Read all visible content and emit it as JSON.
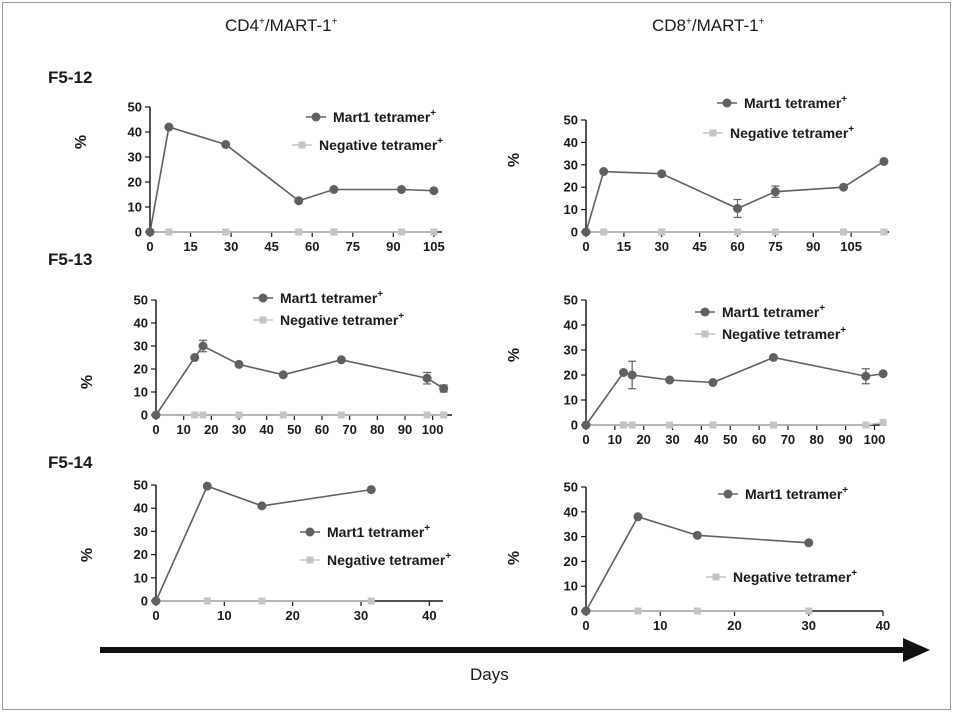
{
  "column_titles": {
    "left": {
      "base": "CD4",
      "sup1": "+",
      "mid": "/MART-1",
      "sup2": "+"
    },
    "right": {
      "base": "CD8",
      "sup1": "+",
      "mid": "/MART-1",
      "sup2": "+"
    }
  },
  "row_labels": [
    "F5-12",
    "F5-13",
    "F5-14"
  ],
  "x_axis_label": "Days",
  "colors": {
    "mart1": "#606060",
    "negative": "#c4c4c4",
    "axis": "#1a1a1a",
    "arrow": "#111111"
  },
  "chart_data": [
    {
      "type": "line",
      "row": "F5-12",
      "column": "CD4+/MART-1+",
      "ylabel": "%",
      "xlim": [
        0,
        108
      ],
      "ylim": [
        0,
        50
      ],
      "xticks": [
        0,
        15,
        30,
        45,
        60,
        75,
        90,
        105
      ],
      "yticks": [
        0,
        10,
        20,
        30,
        40,
        50
      ],
      "series": [
        {
          "name": "Mart1 tetramer+",
          "points": [
            [
              0,
              0
            ],
            [
              7,
              42
            ],
            [
              28,
              35
            ],
            [
              55,
              12.5
            ],
            [
              68,
              17
            ],
            [
              93,
              17
            ],
            [
              105,
              16.5
            ]
          ],
          "errors": [
            0,
            0,
            0,
            0,
            0,
            0,
            0
          ]
        },
        {
          "name": "Negative tetramer+",
          "points": [
            [
              0,
              0
            ],
            [
              7,
              0
            ],
            [
              28,
              0
            ],
            [
              55,
              0
            ],
            [
              68,
              0
            ],
            [
              93,
              0
            ],
            [
              105,
              0
            ]
          ],
          "errors": [
            0,
            0,
            0,
            0,
            0,
            0,
            0
          ]
        }
      ],
      "legend": [
        {
          "series": 0,
          "text": "Mart1 tetramer",
          "sup": "+"
        },
        {
          "series": 1,
          "text": "Negative tetramer",
          "sup": "+"
        }
      ]
    },
    {
      "type": "line",
      "row": "F5-12",
      "column": "CD8+/MART-1+",
      "ylabel": "%",
      "xlim": [
        0,
        120
      ],
      "ylim": [
        0,
        50
      ],
      "xticks": [
        0,
        15,
        30,
        45,
        60,
        75,
        90,
        105
      ],
      "yticks": [
        0,
        10,
        20,
        30,
        40,
        50
      ],
      "series": [
        {
          "name": "Mart1 tetramer+",
          "points": [
            [
              0,
              0
            ],
            [
              7,
              27
            ],
            [
              30,
              26
            ],
            [
              60,
              10.5
            ],
            [
              75,
              18
            ],
            [
              102,
              20
            ],
            [
              118,
              31.5
            ]
          ],
          "errors": [
            0,
            0,
            0,
            4,
            2.5,
            0,
            0
          ]
        },
        {
          "name": "Negative tetramer+",
          "points": [
            [
              0,
              0
            ],
            [
              7,
              0
            ],
            [
              30,
              0
            ],
            [
              60,
              0
            ],
            [
              75,
              0
            ],
            [
              102,
              0
            ],
            [
              118,
              0
            ]
          ],
          "errors": [
            0,
            0,
            0,
            0,
            0,
            0,
            0
          ]
        }
      ],
      "legend": [
        {
          "series": 0,
          "text": "Mart1 tetramer",
          "sup": "+"
        },
        {
          "series": 1,
          "text": "Negative tetramer",
          "sup": "+"
        }
      ]
    },
    {
      "type": "line",
      "row": "F5-13",
      "column": "CD4+/MART-1+",
      "ylabel": "%",
      "xlim": [
        0,
        107
      ],
      "ylim": [
        0,
        50
      ],
      "xticks": [
        0,
        10,
        20,
        30,
        40,
        50,
        60,
        70,
        80,
        90,
        100
      ],
      "yticks": [
        0,
        10,
        20,
        30,
        40,
        50
      ],
      "series": [
        {
          "name": "Mart1 tetramer+",
          "points": [
            [
              0,
              0
            ],
            [
              14,
              25
            ],
            [
              17,
              30
            ],
            [
              30,
              22
            ],
            [
              46,
              17.5
            ],
            [
              67,
              24
            ],
            [
              98,
              16
            ],
            [
              104,
              11.5
            ]
          ],
          "errors": [
            0,
            0,
            2.5,
            0,
            0,
            0,
            2.5,
            1.5
          ]
        },
        {
          "name": "Negative tetramer+",
          "points": [
            [
              0,
              0
            ],
            [
              14,
              0
            ],
            [
              17,
              0
            ],
            [
              30,
              0
            ],
            [
              46,
              0
            ],
            [
              67,
              0
            ],
            [
              98,
              0
            ],
            [
              104,
              0
            ]
          ],
          "errors": [
            0,
            0,
            0,
            0,
            0,
            0,
            0,
            0
          ]
        }
      ],
      "legend": [
        {
          "series": 0,
          "text": "Mart1 tetramer",
          "sup": "+"
        },
        {
          "series": 1,
          "text": "Negative tetramer",
          "sup": "+"
        }
      ]
    },
    {
      "type": "line",
      "row": "F5-13",
      "column": "CD8+/MART-1+",
      "ylabel": "%",
      "xlim": [
        0,
        104
      ],
      "ylim": [
        0,
        50
      ],
      "xticks": [
        0,
        10,
        20,
        30,
        40,
        50,
        60,
        70,
        80,
        90,
        100
      ],
      "yticks": [
        0,
        10,
        20,
        30,
        40,
        50
      ],
      "series": [
        {
          "name": "Mart1 tetramer+",
          "points": [
            [
              0,
              0
            ],
            [
              13,
              21
            ],
            [
              16,
              20
            ],
            [
              29,
              18
            ],
            [
              44,
              17
            ],
            [
              65,
              27
            ],
            [
              97,
              19.5
            ],
            [
              103,
              20.5
            ]
          ],
          "errors": [
            0,
            0,
            5.5,
            0,
            0,
            0,
            3,
            0
          ]
        },
        {
          "name": "Negative tetramer+",
          "points": [
            [
              0,
              0
            ],
            [
              13,
              0
            ],
            [
              16,
              0
            ],
            [
              29,
              0
            ],
            [
              44,
              0
            ],
            [
              65,
              0
            ],
            [
              97,
              0
            ],
            [
              103,
              1
            ]
          ],
          "errors": [
            0,
            0,
            0,
            0,
            0,
            0,
            0,
            0
          ]
        }
      ],
      "legend": [
        {
          "series": 0,
          "text": "Mart1 tetramer",
          "sup": "+"
        },
        {
          "series": 1,
          "text": "Negative tetramer",
          "sup": "+"
        }
      ]
    },
    {
      "type": "line",
      "row": "F5-14",
      "column": "CD4+/MART-1+",
      "ylabel": "%",
      "xlim": [
        0,
        42
      ],
      "ylim": [
        0,
        50
      ],
      "xticks": [
        0,
        10,
        20,
        30,
        40
      ],
      "yticks": [
        0,
        10,
        20,
        30,
        40,
        50
      ],
      "series": [
        {
          "name": "Mart1 tetramer+",
          "points": [
            [
              0,
              0
            ],
            [
              7.5,
              49.5
            ],
            [
              15.5,
              41
            ],
            [
              31.5,
              48
            ]
          ],
          "errors": [
            0,
            0,
            0,
            0
          ]
        },
        {
          "name": "Negative tetramer+",
          "points": [
            [
              0,
              0
            ],
            [
              7.5,
              0
            ],
            [
              15.5,
              0
            ],
            [
              31.5,
              0
            ]
          ],
          "errors": [
            0,
            0,
            0,
            0
          ]
        }
      ],
      "legend": [
        {
          "series": 0,
          "text": "Mart1 tetramer",
          "sup": "+"
        },
        {
          "series": 1,
          "text": "Negative tetramer",
          "sup": "+"
        }
      ]
    },
    {
      "type": "line",
      "row": "F5-14",
      "column": "CD8+/MART-1+",
      "ylabel": "%",
      "xlim": [
        0,
        40
      ],
      "ylim": [
        0,
        50
      ],
      "xticks": [
        0,
        10,
        20,
        30,
        40
      ],
      "yticks": [
        0,
        10,
        20,
        30,
        40,
        50
      ],
      "series": [
        {
          "name": "Mart1 tetramer+",
          "points": [
            [
              0,
              0
            ],
            [
              7,
              38
            ],
            [
              15,
              30.5
            ],
            [
              30,
              27.5
            ]
          ],
          "errors": [
            0,
            0,
            0,
            0
          ]
        },
        {
          "name": "Negative tetramer+",
          "points": [
            [
              0,
              0
            ],
            [
              7,
              0
            ],
            [
              15,
              0
            ],
            [
              30,
              0
            ]
          ],
          "errors": [
            0,
            0,
            0,
            0
          ]
        }
      ],
      "legend": [
        {
          "series": 0,
          "text": "Mart1 tetramer",
          "sup": "+"
        },
        {
          "series": 1,
          "text": "Negative tetramer",
          "sup": "+"
        }
      ]
    }
  ]
}
